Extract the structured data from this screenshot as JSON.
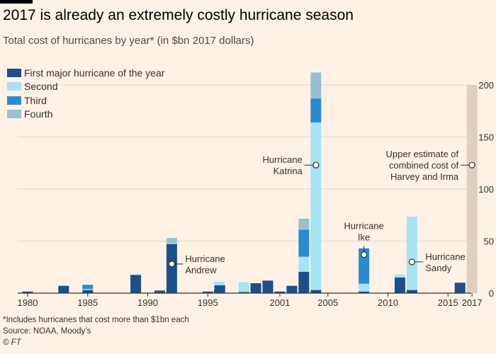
{
  "title": "2017 is already an extremely costly hurricane season",
  "subtitle": "Total cost of hurricanes by year* (in $bn 2017 dollars)",
  "colors": {
    "background": "#fff1e5",
    "first": "#1c5088",
    "second": "#a6e4f2",
    "third": "#2a8ccf",
    "fourth": "#98c0cf",
    "estimate": "#ddcfc1",
    "grid": "#e1d6cc",
    "axis": "#33302e"
  },
  "legend": [
    {
      "label": "First major hurricane of the year",
      "color": "#1c5088"
    },
    {
      "label": "Second",
      "color": "#a6e4f2"
    },
    {
      "label": "Third",
      "color": "#2a8ccf"
    },
    {
      "label": "Fourth",
      "color": "#98c0cf"
    }
  ],
  "chart_data": {
    "type": "bar",
    "stacked": true,
    "title": "2017 is already an extremely costly hurricane season",
    "subtitle": "Total cost of hurricanes by year* (in $bn 2017 dollars)",
    "xlabel": "",
    "ylabel": "",
    "ylim": [
      0,
      200
    ],
    "yticks": [
      0,
      50,
      100,
      150,
      200
    ],
    "y_axis_side": "right",
    "grid": true,
    "legend_position": "top-left",
    "x_tick_labels": [
      "1980",
      "1985",
      "1990",
      "1995",
      "2001",
      "2005",
      "2010",
      "2015",
      "2017"
    ],
    "x_tick_years": [
      1980,
      1985,
      1990,
      1995,
      2001,
      2005,
      2010,
      2015,
      2017
    ],
    "series": [
      {
        "name": "First major hurricane of the year",
        "color": "#1c5088"
      },
      {
        "name": "Second",
        "color": "#a6e4f2"
      },
      {
        "name": "Third",
        "color": "#2a8ccf"
      },
      {
        "name": "Fourth",
        "color": "#98c0cf"
      }
    ],
    "bars": [
      {
        "year": 1980,
        "values": [
          1.5,
          0,
          0,
          0
        ]
      },
      {
        "year": 1983,
        "values": [
          7,
          0,
          0,
          0
        ]
      },
      {
        "year": 1985,
        "values": [
          3,
          1,
          4,
          0
        ]
      },
      {
        "year": 1989,
        "values": [
          17.5,
          0,
          0,
          0
        ]
      },
      {
        "year": 1991,
        "values": [
          2.5,
          0,
          0,
          0
        ]
      },
      {
        "year": 1992,
        "values": [
          47,
          0,
          0,
          6
        ]
      },
      {
        "year": 1995,
        "values": [
          1.5,
          0,
          0,
          0
        ]
      },
      {
        "year": 1995.95,
        "values": [
          3,
          8,
          0,
          0
        ]
      },
      {
        "year": 1996,
        "values": [
          7.5,
          0,
          0,
          0
        ]
      },
      {
        "year": 1998,
        "values": [
          1,
          9.5,
          0,
          0
        ]
      },
      {
        "year": 1999,
        "values": [
          9.5,
          0,
          0,
          0
        ]
      },
      {
        "year": 2000,
        "values": [
          12,
          0,
          0,
          0
        ]
      },
      {
        "year": 2001,
        "values": [
          1.5,
          0,
          0,
          0
        ]
      },
      {
        "year": 2002,
        "values": [
          7,
          0,
          0,
          0
        ]
      },
      {
        "year": 2003,
        "values": [
          20.5,
          14.5,
          26,
          10.5
        ]
      },
      {
        "year": 2004,
        "values": [
          3,
          161,
          23,
          25
        ]
      },
      {
        "year": 2008,
        "values": [
          1.5,
          7.5,
          34,
          0
        ]
      },
      {
        "year": 2011,
        "values": [
          15,
          3,
          0,
          0
        ]
      },
      {
        "year": 2012,
        "values": [
          3,
          70.5,
          0,
          0
        ]
      },
      {
        "year": 2016,
        "values": [
          10,
          0,
          0,
          0
        ]
      }
    ],
    "estimate": {
      "year": 2017,
      "value": 200,
      "color": "#ddcfc1"
    },
    "annotations": [
      {
        "id": "andrew",
        "lines": [
          "Hurricane",
          "Andrew"
        ],
        "year": 1992,
        "value": 28,
        "label_side": "right"
      },
      {
        "id": "katrina",
        "lines": [
          "Hurricane",
          "Katrina"
        ],
        "year": 2004,
        "value": 123,
        "label_side": "left"
      },
      {
        "id": "ike",
        "lines": [
          "Hurricane",
          "Ike"
        ],
        "year": 2008,
        "value": 37,
        "label_side": "above"
      },
      {
        "id": "sandy",
        "lines": [
          "Hurricane",
          "Sandy"
        ],
        "year": 2012,
        "value": 30,
        "label_side": "right"
      },
      {
        "id": "estimate",
        "lines": [
          "Upper estimate of",
          "combined cost of",
          "Harvey and Irma"
        ],
        "year": 2017,
        "value": 123,
        "label_side": "left"
      }
    ]
  },
  "footer": {
    "note": "*Includes hurricanes that cost more than $1bn each",
    "source": "Source: NOAA, Moody’s",
    "credit": "© FT"
  }
}
